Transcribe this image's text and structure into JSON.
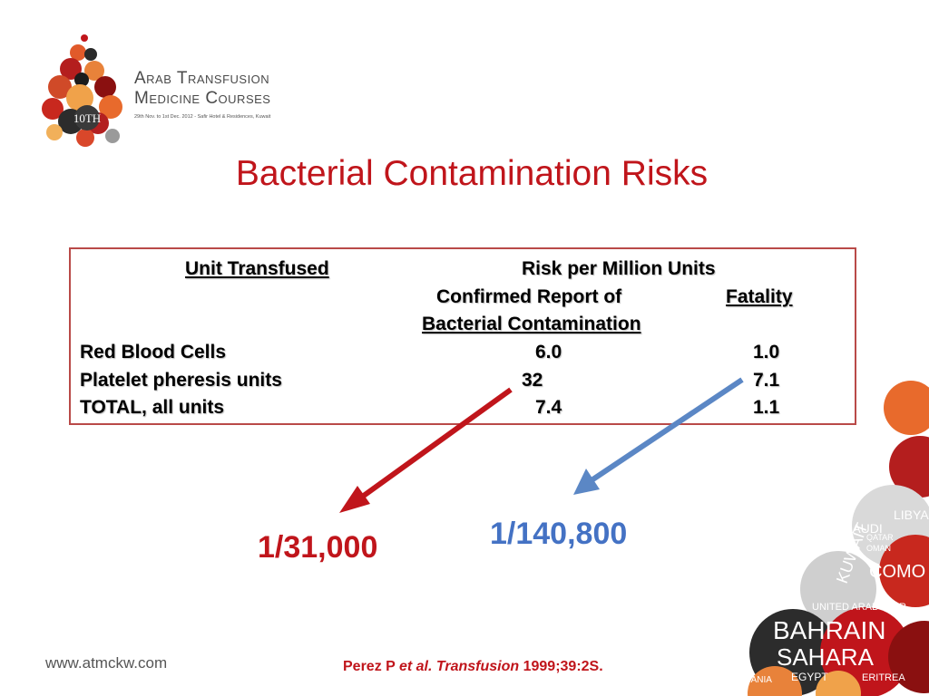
{
  "logo": {
    "line1": "Arab Transfusion",
    "line2": "Medicine Courses",
    "edition": "10TH",
    "dates": "29th Nov. to 1st Dec. 2012 - Safir Hotel & Residences, Kuwait"
  },
  "title": "Bacterial Contamination Risks",
  "table": {
    "header_unit": "Unit Transfused",
    "header_risk": "Risk per Million Units",
    "header_confirmed_1": "Confirmed Report of",
    "header_confirmed_2": "Bacterial Contamination",
    "header_fatality": "Fatality",
    "rows": [
      {
        "unit": "Red Blood Cells",
        "confirmed": "6.0",
        "fatality": "1.0"
      },
      {
        "unit": "Platelet pheresis units",
        "confirmed": "32",
        "fatality": "7.1"
      },
      {
        "unit": "TOTAL, all units",
        "confirmed": "7.4",
        "fatality": "1.1"
      }
    ]
  },
  "callouts": {
    "red": "1/31,000",
    "blue": "1/140,800",
    "red_color": "#c0151b",
    "blue_color": "#4472c4"
  },
  "footer": {
    "website": "www.atmckw.com",
    "citation_authors": "Perez P ",
    "citation_journal": "et al. Transfusion",
    "citation_ref": " 1999;39:2S."
  },
  "decoration_words": [
    "SAUDI",
    "KUWAIT",
    "BAHRAIN",
    "SAHARA",
    "COMO",
    "EGYPT",
    "QATAR",
    "OMAN",
    "UNITED ARAB EMIR",
    "MAURITANIA",
    "ERITREA",
    "LIBYA"
  ]
}
